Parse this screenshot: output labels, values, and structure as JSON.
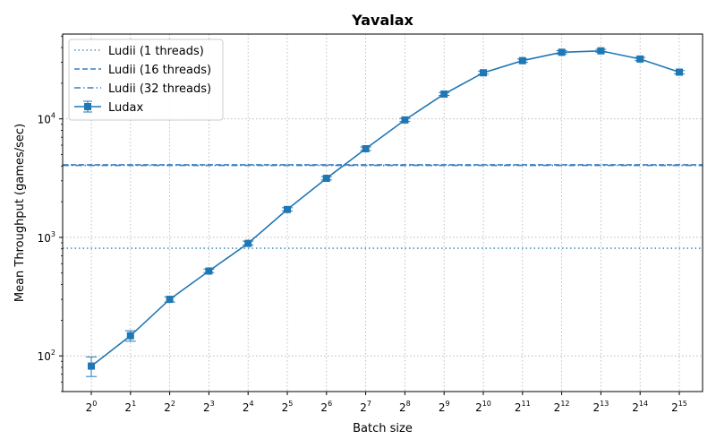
{
  "chart_data": {
    "type": "line",
    "title": "Yavalax",
    "xlabel": "Batch size",
    "ylabel": "Mean Throughput (games/sec)",
    "x_scale": "log2",
    "y_scale": "log10",
    "x_tick_labels": [
      {
        "base": "2",
        "exp": "0"
      },
      {
        "base": "2",
        "exp": "1"
      },
      {
        "base": "2",
        "exp": "2"
      },
      {
        "base": "2",
        "exp": "3"
      },
      {
        "base": "2",
        "exp": "4"
      },
      {
        "base": "2",
        "exp": "5"
      },
      {
        "base": "2",
        "exp": "6"
      },
      {
        "base": "2",
        "exp": "7"
      },
      {
        "base": "2",
        "exp": "8"
      },
      {
        "base": "2",
        "exp": "9"
      },
      {
        "base": "2",
        "exp": "10"
      },
      {
        "base": "2",
        "exp": "11"
      },
      {
        "base": "2",
        "exp": "12"
      },
      {
        "base": "2",
        "exp": "13"
      },
      {
        "base": "2",
        "exp": "14"
      },
      {
        "base": "2",
        "exp": "15"
      }
    ],
    "y_tick_labels": [
      {
        "base": "10",
        "exp": "2"
      },
      {
        "base": "10",
        "exp": "3"
      },
      {
        "base": "10",
        "exp": "4"
      }
    ],
    "ylim": [
      50,
      52000
    ],
    "grid": true,
    "legend_position": "top-left",
    "x": [
      1,
      2,
      4,
      8,
      16,
      32,
      64,
      128,
      256,
      512,
      1024,
      2048,
      4096,
      8192,
      16384,
      32768
    ],
    "series": [
      {
        "name": "Ludii (1 threads)",
        "kind": "hline",
        "linestyle": "dotted",
        "color": "#4a90b8",
        "value": 810
      },
      {
        "name": "Ludii (16 threads)",
        "kind": "hline",
        "linestyle": "dashed",
        "color": "#3a7fbf",
        "value": 4100
      },
      {
        "name": "Ludii (32 threads)",
        "kind": "hline",
        "linestyle": "dashdot",
        "color": "#3a7fbf",
        "value": 4050
      },
      {
        "name": "Ludax",
        "kind": "line",
        "marker": "square",
        "color": "#1f77b4",
        "values": [
          82,
          148,
          300,
          520,
          890,
          1720,
          3150,
          5600,
          9800,
          16200,
          24500,
          31000,
          36500,
          37500,
          32000,
          24800
        ],
        "err_low": [
          67,
          133,
          285,
          505,
          860,
          1670,
          3050,
          5400,
          9500,
          15800,
          23800,
          30000,
          35300,
          36500,
          31000,
          24000
        ],
        "err_high": [
          98,
          163,
          315,
          540,
          930,
          1780,
          3250,
          5800,
          10100,
          16700,
          25300,
          32000,
          37700,
          38600,
          33000,
          25600
        ]
      }
    ]
  }
}
